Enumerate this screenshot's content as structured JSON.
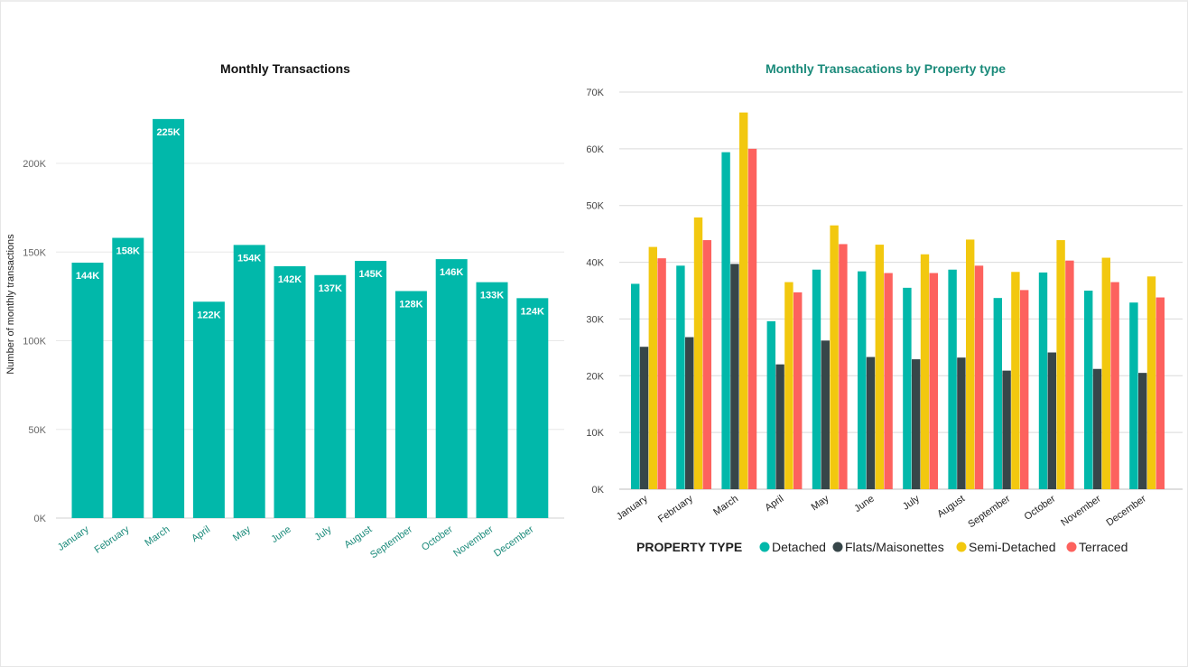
{
  "colors": {
    "primary": "#01B8AA",
    "detached": "#01B8AA",
    "flats": "#374649",
    "semi": "#F2C80F",
    "terraced": "#FD625E",
    "axis_text": "#666666",
    "month_label": "#1a8a7a"
  },
  "chart_data": [
    {
      "type": "bar",
      "title": "Monthly Transactions",
      "ylabel": "Number of monthly transactions",
      "xlabel": "",
      "categories": [
        "January",
        "February",
        "March",
        "April",
        "May",
        "June",
        "July",
        "August",
        "September",
        "October",
        "November",
        "December"
      ],
      "values": [
        144,
        158,
        225,
        122,
        154,
        142,
        137,
        145,
        128,
        146,
        133,
        124
      ],
      "data_labels": [
        "144K",
        "158K",
        "225K",
        "122K",
        "154K",
        "142K",
        "137K",
        "145K",
        "128K",
        "146K",
        "133K",
        "124K"
      ],
      "unit": "thousands",
      "yticks": [
        "0K",
        "50K",
        "100K",
        "150K",
        "200K"
      ],
      "ylim": [
        0,
        225
      ],
      "grid": true
    },
    {
      "type": "bar",
      "title": "Monthly Transacations by Property type",
      "categories": [
        "January",
        "February",
        "March",
        "April",
        "May",
        "June",
        "July",
        "August",
        "September",
        "October",
        "November",
        "December"
      ],
      "legend_title": "PROPERTY TYPE",
      "legend_position": "bottom",
      "series": [
        {
          "name": "Detached",
          "values": [
            36.2,
            39.4,
            59.4,
            29.6,
            38.7,
            38.4,
            35.5,
            38.7,
            33.7,
            38.2,
            35.0,
            32.9
          ]
        },
        {
          "name": "Flats/Maisonettes",
          "values": [
            25.1,
            26.8,
            39.7,
            22.0,
            26.2,
            23.3,
            22.9,
            23.2,
            20.9,
            24.1,
            21.2,
            20.5
          ]
        },
        {
          "name": "Semi-Detached",
          "values": [
            42.7,
            47.9,
            66.4,
            36.5,
            46.5,
            43.1,
            41.4,
            44.0,
            38.3,
            43.9,
            40.8,
            37.5
          ]
        },
        {
          "name": "Terraced",
          "values": [
            40.7,
            43.9,
            60.0,
            34.7,
            43.2,
            38.1,
            38.1,
            39.4,
            35.1,
            40.3,
            36.5,
            33.8
          ]
        }
      ],
      "unit": "thousands",
      "yticks": [
        "0K",
        "10K",
        "20K",
        "30K",
        "40K",
        "50K",
        "60K",
        "70K"
      ],
      "ylim": [
        0,
        70
      ],
      "grid": true
    }
  ]
}
